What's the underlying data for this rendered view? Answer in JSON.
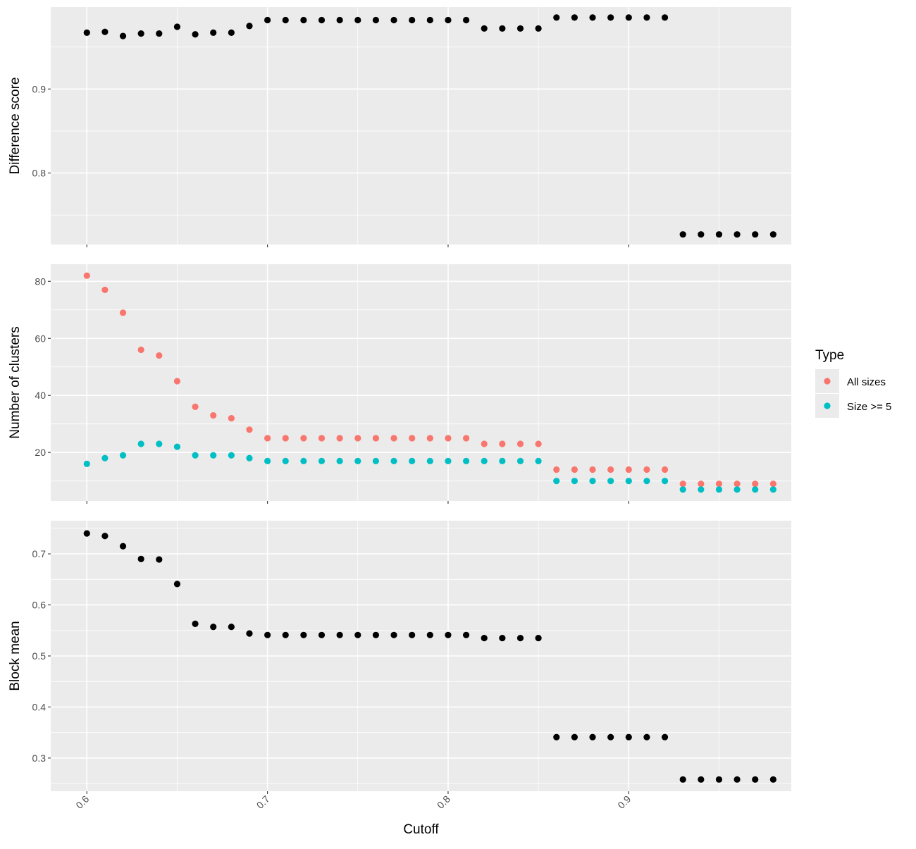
{
  "chart_data": [
    {
      "type": "scatter",
      "ylabel": "Difference score",
      "xlabel": "",
      "xlim": [
        0.58,
        0.99
      ],
      "ylim": [
        0.715,
        0.9975
      ],
      "x_ticks": [
        0.6,
        0.7,
        0.8,
        0.9
      ],
      "y_ticks": [
        0.8,
        0.9
      ],
      "y_tick_labels": [
        "0.8",
        "0.9"
      ],
      "grid": true,
      "series": [
        {
          "color": "#000000",
          "points": [
            [
              0.6,
              0.967
            ],
            [
              0.61,
              0.968
            ],
            [
              0.62,
              0.963
            ],
            [
              0.63,
              0.966
            ],
            [
              0.64,
              0.966
            ],
            [
              0.65,
              0.974
            ],
            [
              0.66,
              0.965
            ],
            [
              0.67,
              0.967
            ],
            [
              0.68,
              0.967
            ],
            [
              0.69,
              0.975
            ],
            [
              0.7,
              0.982
            ],
            [
              0.71,
              0.982
            ],
            [
              0.72,
              0.982
            ],
            [
              0.73,
              0.982
            ],
            [
              0.74,
              0.982
            ],
            [
              0.75,
              0.982
            ],
            [
              0.76,
              0.982
            ],
            [
              0.77,
              0.982
            ],
            [
              0.78,
              0.982
            ],
            [
              0.79,
              0.982
            ],
            [
              0.8,
              0.982
            ],
            [
              0.81,
              0.982
            ],
            [
              0.82,
              0.972
            ],
            [
              0.83,
              0.972
            ],
            [
              0.84,
              0.972
            ],
            [
              0.85,
              0.972
            ],
            [
              0.86,
              0.985
            ],
            [
              0.87,
              0.985
            ],
            [
              0.88,
              0.985
            ],
            [
              0.89,
              0.985
            ],
            [
              0.9,
              0.985
            ],
            [
              0.91,
              0.985
            ],
            [
              0.92,
              0.985
            ],
            [
              0.93,
              0.727
            ],
            [
              0.94,
              0.727
            ],
            [
              0.95,
              0.727
            ],
            [
              0.96,
              0.727
            ],
            [
              0.97,
              0.727
            ],
            [
              0.98,
              0.727
            ]
          ]
        }
      ]
    },
    {
      "type": "scatter",
      "ylabel": "Number of clusters",
      "xlabel": "",
      "xlim": [
        0.58,
        0.99
      ],
      "ylim": [
        3,
        86
      ],
      "x_ticks": [
        0.6,
        0.7,
        0.8,
        0.9
      ],
      "y_ticks": [
        20,
        40,
        60,
        80
      ],
      "y_tick_labels": [
        "20",
        "40",
        "60",
        "80"
      ],
      "grid": true,
      "series": [
        {
          "name": "All sizes",
          "color": "#F8766D",
          "points": [
            [
              0.6,
              82
            ],
            [
              0.61,
              77
            ],
            [
              0.62,
              69
            ],
            [
              0.63,
              56
            ],
            [
              0.64,
              54
            ],
            [
              0.65,
              45
            ],
            [
              0.66,
              36
            ],
            [
              0.67,
              33
            ],
            [
              0.68,
              32
            ],
            [
              0.69,
              28
            ],
            [
              0.7,
              25
            ],
            [
              0.71,
              25
            ],
            [
              0.72,
              25
            ],
            [
              0.73,
              25
            ],
            [
              0.74,
              25
            ],
            [
              0.75,
              25
            ],
            [
              0.76,
              25
            ],
            [
              0.77,
              25
            ],
            [
              0.78,
              25
            ],
            [
              0.79,
              25
            ],
            [
              0.8,
              25
            ],
            [
              0.81,
              25
            ],
            [
              0.82,
              23
            ],
            [
              0.83,
              23
            ],
            [
              0.84,
              23
            ],
            [
              0.85,
              23
            ],
            [
              0.86,
              14
            ],
            [
              0.87,
              14
            ],
            [
              0.88,
              14
            ],
            [
              0.89,
              14
            ],
            [
              0.9,
              14
            ],
            [
              0.91,
              14
            ],
            [
              0.92,
              14
            ],
            [
              0.93,
              9
            ],
            [
              0.94,
              9
            ],
            [
              0.95,
              9
            ],
            [
              0.96,
              9
            ],
            [
              0.97,
              9
            ],
            [
              0.98,
              9
            ]
          ]
        },
        {
          "name": "Size >= 5",
          "color": "#00BFC4",
          "points": [
            [
              0.6,
              16
            ],
            [
              0.61,
              18
            ],
            [
              0.62,
              19
            ],
            [
              0.63,
              23
            ],
            [
              0.64,
              23
            ],
            [
              0.65,
              22
            ],
            [
              0.66,
              19
            ],
            [
              0.67,
              19
            ],
            [
              0.68,
              19
            ],
            [
              0.69,
              18
            ],
            [
              0.7,
              17
            ],
            [
              0.71,
              17
            ],
            [
              0.72,
              17
            ],
            [
              0.73,
              17
            ],
            [
              0.74,
              17
            ],
            [
              0.75,
              17
            ],
            [
              0.76,
              17
            ],
            [
              0.77,
              17
            ],
            [
              0.78,
              17
            ],
            [
              0.79,
              17
            ],
            [
              0.8,
              17
            ],
            [
              0.81,
              17
            ],
            [
              0.82,
              17
            ],
            [
              0.83,
              17
            ],
            [
              0.84,
              17
            ],
            [
              0.85,
              17
            ],
            [
              0.86,
              10
            ],
            [
              0.87,
              10
            ],
            [
              0.88,
              10
            ],
            [
              0.89,
              10
            ],
            [
              0.9,
              10
            ],
            [
              0.91,
              10
            ],
            [
              0.92,
              10
            ],
            [
              0.93,
              7
            ],
            [
              0.94,
              7
            ],
            [
              0.95,
              7
            ],
            [
              0.96,
              7
            ],
            [
              0.97,
              7
            ],
            [
              0.98,
              7
            ]
          ]
        }
      ],
      "legend": {
        "title": "Type",
        "position": "right",
        "entries": [
          "All sizes",
          "Size >= 5"
        ]
      }
    },
    {
      "type": "scatter",
      "ylabel": "Block mean",
      "xlabel": "Cutoff",
      "xlim": [
        0.58,
        0.99
      ],
      "ylim": [
        0.235,
        0.765
      ],
      "x_ticks": [
        0.6,
        0.7,
        0.8,
        0.9
      ],
      "x_tick_labels": [
        "0.6",
        "0.7",
        "0.8",
        "0.9"
      ],
      "y_ticks": [
        0.3,
        0.4,
        0.5,
        0.6,
        0.7
      ],
      "y_tick_labels": [
        "0.3",
        "0.4",
        "0.5",
        "0.6",
        "0.7"
      ],
      "grid": true,
      "series": [
        {
          "color": "#000000",
          "points": [
            [
              0.6,
              0.74
            ],
            [
              0.61,
              0.735
            ],
            [
              0.62,
              0.715
            ],
            [
              0.63,
              0.69
            ],
            [
              0.64,
              0.689
            ],
            [
              0.65,
              0.641
            ],
            [
              0.66,
              0.563
            ],
            [
              0.67,
              0.557
            ],
            [
              0.68,
              0.557
            ],
            [
              0.69,
              0.544
            ],
            [
              0.7,
              0.541
            ],
            [
              0.71,
              0.541
            ],
            [
              0.72,
              0.541
            ],
            [
              0.73,
              0.541
            ],
            [
              0.74,
              0.541
            ],
            [
              0.75,
              0.541
            ],
            [
              0.76,
              0.541
            ],
            [
              0.77,
              0.541
            ],
            [
              0.78,
              0.541
            ],
            [
              0.79,
              0.541
            ],
            [
              0.8,
              0.541
            ],
            [
              0.81,
              0.541
            ],
            [
              0.82,
              0.535
            ],
            [
              0.83,
              0.535
            ],
            [
              0.84,
              0.535
            ],
            [
              0.85,
              0.535
            ],
            [
              0.86,
              0.341
            ],
            [
              0.87,
              0.341
            ],
            [
              0.88,
              0.341
            ],
            [
              0.89,
              0.341
            ],
            [
              0.9,
              0.341
            ],
            [
              0.91,
              0.341
            ],
            [
              0.92,
              0.341
            ],
            [
              0.93,
              0.258
            ],
            [
              0.94,
              0.258
            ],
            [
              0.95,
              0.258
            ],
            [
              0.96,
              0.258
            ],
            [
              0.97,
              0.258
            ],
            [
              0.98,
              0.258
            ]
          ]
        }
      ]
    }
  ]
}
